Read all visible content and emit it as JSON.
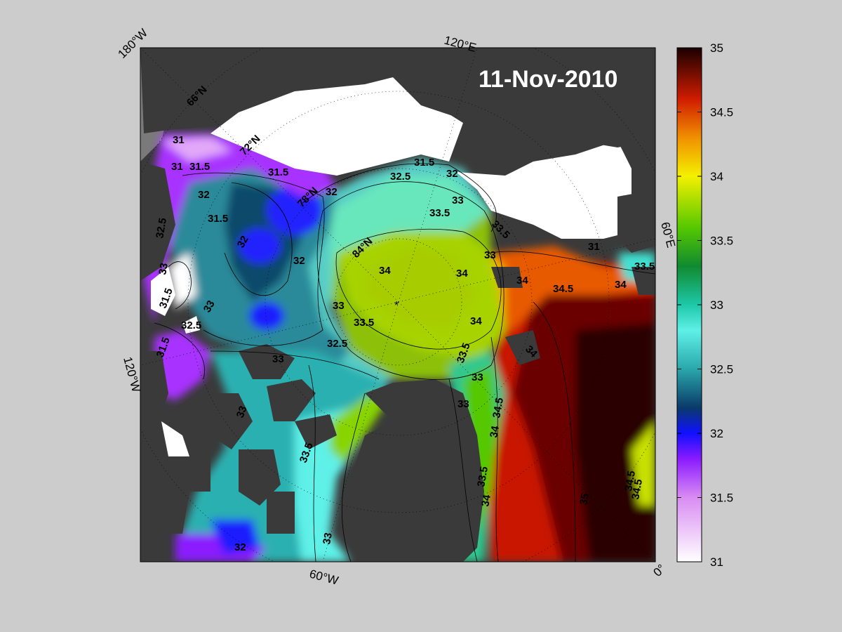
{
  "map": {
    "date": "11-Nov-2010",
    "edge_labels": {
      "top_left": "180°W",
      "top": "120°E",
      "right": "60°E",
      "bottom_right": "0°",
      "bottom": "60°W",
      "left": "120°W"
    },
    "latitude_labels": [
      "66°N",
      "72°N",
      "78°N",
      "84°N"
    ],
    "contour_labels": [
      "31",
      "31",
      "31",
      "31.5",
      "31.5",
      "31.5",
      "31.5",
      "31.5",
      "31.5",
      "32",
      "32",
      "32",
      "32",
      "32",
      "32",
      "32.5",
      "32.5",
      "32.5",
      "32.5",
      "33",
      "33",
      "33",
      "33",
      "33",
      "33",
      "33",
      "33",
      "33",
      "33",
      "33.5",
      "33.5",
      "33.5",
      "33.5",
      "33.5",
      "33.5",
      "33.5",
      "34",
      "34",
      "34",
      "34",
      "34",
      "34",
      "34",
      "34",
      "34.5",
      "34.5",
      "34.5",
      "34.5",
      "35"
    ],
    "colors": {
      "ocean_low": "#ffffff",
      "land": "#3a3a3a",
      "ice": "#ffffff",
      "background": "#cccccc"
    }
  },
  "colorbar": {
    "min": 31,
    "max": 35,
    "ticks": [
      "35",
      "34.5",
      "34",
      "33.5",
      "33",
      "32.5",
      "32",
      "31.5",
      "31"
    ],
    "stops": [
      {
        "v": 31.0,
        "c": "#ffffff"
      },
      {
        "v": 31.5,
        "c": "#d98cf2"
      },
      {
        "v": 31.8,
        "c": "#8a1bff"
      },
      {
        "v": 32.0,
        "c": "#1010ff"
      },
      {
        "v": 32.2,
        "c": "#0a3a6a"
      },
      {
        "v": 32.5,
        "c": "#2aa7aa"
      },
      {
        "v": 32.8,
        "c": "#5ff0e8"
      },
      {
        "v": 33.0,
        "c": "#1ec8a8"
      },
      {
        "v": 33.3,
        "c": "#108a30"
      },
      {
        "v": 33.6,
        "c": "#55c800"
      },
      {
        "v": 34.0,
        "c": "#f4f000"
      },
      {
        "v": 34.3,
        "c": "#f09000"
      },
      {
        "v": 34.6,
        "c": "#d01c00"
      },
      {
        "v": 35.0,
        "c": "#1a0000"
      }
    ]
  }
}
